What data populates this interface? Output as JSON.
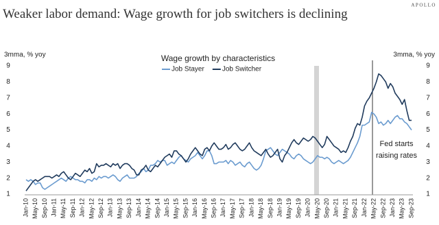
{
  "chart_data": {
    "type": "line",
    "title": "Weaker labor demand: Wage growth for job switchers is declining",
    "brand": "APOLLO",
    "subtitle": "Wage growth by characteristics",
    "y_label": "3mma, % yoy",
    "y2_label": "3mma, % yoy",
    "annotation": [
      "Fed starts",
      "raising rates"
    ],
    "categories": [
      "Jan-10",
      null,
      null,
      null,
      "May-10",
      null,
      null,
      null,
      "Sep-10",
      null,
      null,
      null,
      "Jan-11",
      null,
      null,
      null,
      "May-11",
      null,
      null,
      null,
      "Sep-11",
      null,
      null,
      null,
      "Jan-12",
      null,
      null,
      null,
      "May-12",
      null,
      null,
      null,
      "Sep-12",
      null,
      null,
      null,
      "Jan-13",
      null,
      null,
      null,
      "May-13",
      null,
      null,
      null,
      "Sep-13",
      null,
      null,
      null,
      "Jan-14",
      null,
      null,
      null,
      "May-14",
      null,
      null,
      null,
      "Sep-14",
      null,
      null,
      null,
      "Jan-15",
      null,
      null,
      null,
      "May-15",
      null,
      null,
      null,
      "Sep-15",
      null,
      null,
      null,
      "Jan-16",
      null,
      null,
      null,
      "May-16",
      null,
      null,
      null,
      "Sep-16",
      null,
      null,
      null,
      "Jan-17",
      null,
      null,
      null,
      "May-17",
      null,
      null,
      null,
      "Sep-17",
      null,
      null,
      null,
      "Jan-18",
      null,
      null,
      null,
      "May-18",
      null,
      null,
      null,
      "Sep-18",
      null,
      null,
      null,
      "Jan-19",
      null,
      null,
      null,
      "May-19",
      null,
      null,
      null,
      "Sep-19",
      null,
      null,
      null,
      "Jan-20",
      null,
      null,
      null,
      "May-20",
      null,
      null,
      null,
      "Sep-20",
      null,
      null,
      null,
      "Jan-21",
      null,
      null,
      null,
      "May-21",
      null,
      null,
      null,
      "Sep-21",
      null,
      null,
      null,
      "Jan-22",
      null,
      null,
      null,
      "May-22",
      null,
      null,
      null,
      "Sep-22",
      null,
      null,
      null,
      "Jan-23",
      null,
      null,
      null,
      "May-23",
      null,
      null,
      null,
      "Sep-23"
    ],
    "series": [
      {
        "name": "Job Stayer",
        "color": "#6a9bcf",
        "values": [
          1.9,
          1.8,
          1.9,
          1.8,
          1.6,
          1.7,
          1.7,
          1.4,
          1.3,
          1.4,
          1.5,
          1.6,
          1.7,
          1.8,
          1.9,
          2.0,
          1.9,
          1.8,
          2.0,
          2.1,
          2.0,
          1.9,
          1.9,
          1.8,
          1.8,
          1.7,
          1.9,
          1.9,
          1.8,
          2.0,
          1.9,
          2.1,
          2.0,
          2.1,
          2.1,
          2.0,
          2.1,
          2.2,
          2.1,
          1.9,
          1.8,
          2.0,
          2.1,
          2.2,
          2.0,
          2.0,
          2.0,
          2.1,
          2.3,
          2.4,
          2.6,
          2.4,
          2.5,
          2.8,
          2.8,
          2.9,
          3.1,
          3.0,
          3.1,
          3.1,
          2.8,
          2.9,
          3.0,
          2.9,
          3.1,
          3.3,
          3.4,
          3.2,
          3.1,
          3.0,
          3.2,
          3.3,
          3.4,
          3.6,
          3.4,
          3.2,
          3.4,
          3.7,
          3.7,
          3.4,
          2.9,
          2.9,
          3.0,
          3.0,
          3.0,
          3.1,
          2.9,
          3.1,
          3.0,
          2.8,
          2.9,
          3.0,
          2.8,
          2.7,
          2.9,
          3.0,
          2.8,
          2.6,
          2.5,
          2.6,
          2.8,
          3.2,
          3.7,
          3.8,
          3.9,
          3.7,
          3.5,
          3.4,
          3.6,
          3.8,
          3.7,
          3.6,
          3.5,
          3.3,
          3.2,
          3.4,
          3.5,
          3.4,
          3.2,
          3.1,
          3.0,
          2.9,
          3.0,
          3.2,
          3.4,
          3.3,
          3.3,
          3.2,
          3.3,
          3.2,
          3.0,
          2.9,
          3.0,
          3.1,
          3.0,
          2.9,
          3.0,
          3.1,
          3.3,
          3.6,
          3.9,
          4.2,
          4.6,
          5.3,
          5.3,
          5.4,
          5.5,
          6.1,
          6.0,
          5.8,
          5.4,
          5.5,
          5.3,
          5.4,
          5.6,
          5.4,
          5.6,
          5.8,
          5.9,
          5.7,
          5.7,
          5.5,
          5.4,
          5.2,
          5.0
        ]
      },
      {
        "name": "Job Switcher",
        "color": "#1f3a5c",
        "values": [
          1.2,
          1.4,
          1.6,
          1.8,
          1.9,
          1.8,
          1.9,
          2.0,
          2.1,
          2.1,
          2.1,
          2.0,
          2.1,
          2.2,
          2.1,
          2.3,
          2.4,
          2.2,
          2.0,
          1.9,
          2.1,
          2.3,
          2.2,
          2.1,
          2.3,
          2.5,
          2.4,
          2.6,
          2.3,
          2.4,
          2.9,
          2.7,
          2.8,
          2.8,
          2.9,
          2.8,
          2.7,
          2.9,
          2.8,
          2.9,
          2.6,
          2.8,
          2.9,
          2.9,
          2.8,
          2.6,
          2.5,
          2.2,
          2.2,
          2.5,
          2.6,
          2.8,
          2.5,
          2.4,
          2.6,
          2.8,
          2.7,
          2.9,
          3.1,
          3.3,
          3.4,
          3.5,
          3.3,
          3.7,
          3.7,
          3.5,
          3.4,
          3.2,
          3.0,
          3.2,
          3.5,
          3.7,
          3.9,
          3.7,
          3.5,
          3.4,
          3.8,
          3.9,
          3.7,
          4.0,
          4.2,
          4.0,
          3.8,
          3.8,
          3.9,
          4.1,
          3.8,
          3.9,
          4.1,
          4.2,
          4.0,
          3.8,
          3.7,
          3.8,
          4.0,
          4.2,
          3.9,
          3.7,
          3.6,
          3.5,
          3.4,
          3.6,
          3.8,
          3.5,
          3.3,
          3.4,
          3.6,
          3.8,
          3.2,
          3.0,
          3.4,
          3.6,
          3.9,
          4.2,
          4.4,
          4.2,
          4.1,
          4.3,
          4.5,
          4.4,
          4.3,
          4.4,
          4.6,
          4.5,
          4.3,
          4.1,
          3.9,
          4.1,
          4.6,
          4.4,
          4.2,
          4.0,
          3.9,
          3.8,
          3.6,
          3.7,
          3.6,
          3.9,
          4.3,
          4.6,
          5.1,
          5.4,
          5.3,
          5.8,
          6.5,
          6.8,
          7.0,
          7.3,
          7.6,
          8.0,
          8.5,
          8.4,
          8.2,
          8.0,
          7.6,
          7.9,
          7.7,
          7.3,
          7.1,
          6.9,
          6.6,
          6.9,
          6.2,
          5.6,
          5.6
        ]
      }
    ],
    "ylim": [
      1,
      9
    ],
    "yticks": [
      1,
      2,
      3,
      4,
      5,
      6,
      7,
      8,
      9
    ],
    "y2lim": [
      1,
      9
    ],
    "y2ticks": [
      1,
      2,
      3,
      4,
      5,
      6,
      7,
      8,
      9
    ],
    "grid": false,
    "legend": "top"
  }
}
